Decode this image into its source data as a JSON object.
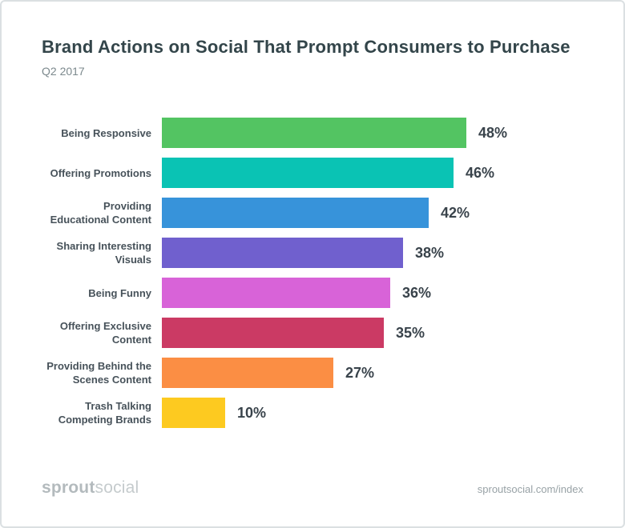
{
  "header": {
    "title": "Brand Actions on Social That Prompt Consumers to Purchase",
    "subtitle": "Q2 2017"
  },
  "chart_data": {
    "type": "bar",
    "orientation": "horizontal",
    "title": "Brand Actions on Social That Prompt Consumers to Purchase",
    "subtitle": "Q2 2017",
    "categories": [
      "Being Responsive",
      "Offering Promotions",
      "Providing Educational Content",
      "Sharing Interesting Visuals",
      "Being Funny",
      "Offering Exclusive Content",
      "Providing Behind the Scenes Content",
      "Trash Talking Competing Brands"
    ],
    "values": [
      48,
      46,
      42,
      38,
      36,
      35,
      27,
      10
    ],
    "value_suffix": "%",
    "bar_colors": [
      "#53c462",
      "#0ac3b4",
      "#3793da",
      "#7060ce",
      "#d863d8",
      "#cb3a64",
      "#fb8e44",
      "#fdca20"
    ],
    "xlabel": "",
    "ylabel": "",
    "xlim": [
      0,
      48
    ],
    "grid": false,
    "legend": false,
    "value_labels_shown": true
  },
  "footer": {
    "logo_bold": "sprout",
    "logo_light": "social",
    "url": "sproutsocial.com/index"
  },
  "style": {
    "title_color": "#33454a",
    "subtitle_color": "#7c898d",
    "label_color": "#47525a",
    "value_color": "#39434b",
    "border_color": "#dbe0e2",
    "background": "#ffffff"
  }
}
